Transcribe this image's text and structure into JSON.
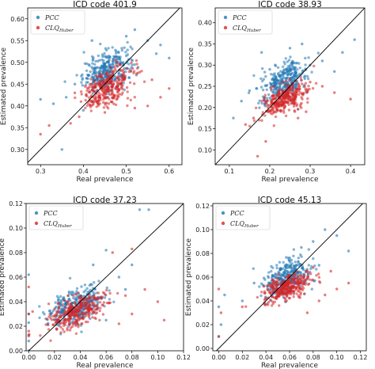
{
  "colors": {
    "pcc": "#1f77b4",
    "clq": "#d62728",
    "diag": "#000000",
    "axis": "#000000"
  },
  "chart_data": [
    {
      "type": "scatter",
      "title": "ICD code 401.9",
      "xlabel": "Real prevalence",
      "ylabel": "Estimated prevalence",
      "xlim": [
        0.27,
        0.63
      ],
      "ylim": [
        0.265,
        0.625
      ],
      "xticks": [
        "0.3",
        "0.4",
        "0.5",
        "0.6"
      ],
      "xtick_values": [
        0.3,
        0.4,
        0.5,
        0.6
      ],
      "yticks": [
        "0.30",
        "0.35",
        "0.40",
        "0.45",
        "0.50",
        "0.55",
        "0.60"
      ],
      "ytick_values": [
        0.3,
        0.35,
        0.4,
        0.45,
        0.5,
        0.55,
        0.6
      ],
      "grid": false,
      "legend_position": "top-left",
      "series": [
        {
          "name": "PCC",
          "sub": "",
          "color": "#1f77b4",
          "cluster": {
            "cx": 0.455,
            "cy": 0.482,
            "sx": 0.028,
            "sy": 0.022,
            "n": 320
          },
          "outliers": [
            [
              0.3,
              0.415
            ],
            [
              0.33,
              0.405
            ],
            [
              0.36,
              0.42
            ],
            [
              0.4,
              0.39
            ],
            [
              0.5,
              0.56
            ],
            [
              0.52,
              0.575
            ],
            [
              0.55,
              0.55
            ],
            [
              0.58,
              0.54
            ],
            [
              0.6,
              0.51
            ],
            [
              0.38,
              0.45
            ],
            [
              0.35,
              0.3
            ],
            [
              0.42,
              0.55
            ],
            [
              0.57,
              0.52
            ]
          ]
        },
        {
          "name": "CLQ",
          "sub": "Huber",
          "color": "#d62728",
          "cluster": {
            "cx": 0.455,
            "cy": 0.44,
            "sx": 0.03,
            "sy": 0.02,
            "n": 320
          },
          "outliers": [
            [
              0.3,
              0.335
            ],
            [
              0.32,
              0.355
            ],
            [
              0.37,
              0.36
            ],
            [
              0.39,
              0.375
            ],
            [
              0.55,
              0.4
            ],
            [
              0.58,
              0.42
            ],
            [
              0.6,
              0.44
            ],
            [
              0.45,
              0.385
            ],
            [
              0.48,
              0.5
            ],
            [
              0.38,
              0.43
            ],
            [
              0.56,
              0.46
            ],
            [
              0.52,
              0.395
            ]
          ]
        }
      ]
    },
    {
      "type": "scatter",
      "title": "ICD code 38.93",
      "xlabel": "Real prevalence",
      "ylabel": "Estimated prevalence",
      "xlim": [
        0.065,
        0.435
      ],
      "ylim": [
        0.065,
        0.435
      ],
      "xticks": [
        "0.1",
        "0.2",
        "0.3",
        "0.4"
      ],
      "xtick_values": [
        0.1,
        0.2,
        0.3,
        0.4
      ],
      "yticks": [
        "0.10",
        "0.15",
        "0.20",
        "0.25",
        "0.30",
        "0.35",
        "0.40"
      ],
      "ytick_values": [
        0.1,
        0.15,
        0.2,
        0.25,
        0.3,
        0.35,
        0.4
      ],
      "grid": false,
      "legend_position": "top-left",
      "series": [
        {
          "name": "PCC",
          "sub": "",
          "color": "#1f77b4",
          "cluster": {
            "cx": 0.235,
            "cy": 0.262,
            "sx": 0.028,
            "sy": 0.022,
            "n": 320
          },
          "outliers": [
            [
              0.11,
              0.175
            ],
            [
              0.13,
              0.215
            ],
            [
              0.15,
              0.24
            ],
            [
              0.3,
              0.3
            ],
            [
              0.33,
              0.31
            ],
            [
              0.36,
              0.285
            ],
            [
              0.18,
              0.33
            ],
            [
              0.25,
              0.34
            ],
            [
              0.28,
              0.35
            ],
            [
              0.38,
              0.33
            ],
            [
              0.41,
              0.36
            ],
            [
              0.2,
              0.29
            ]
          ]
        },
        {
          "name": "CLQ",
          "sub": "Huber",
          "color": "#d62728",
          "cluster": {
            "cx": 0.235,
            "cy": 0.22,
            "sx": 0.028,
            "sy": 0.016,
            "n": 320
          },
          "outliers": [
            [
              0.17,
              0.085
            ],
            [
              0.19,
              0.12
            ],
            [
              0.14,
              0.16
            ],
            [
              0.16,
              0.175
            ],
            [
              0.3,
              0.26
            ],
            [
              0.33,
              0.25
            ],
            [
              0.36,
              0.235
            ],
            [
              0.4,
              0.22
            ],
            [
              0.27,
              0.175
            ],
            [
              0.29,
              0.19
            ]
          ]
        }
      ]
    },
    {
      "type": "scatter",
      "title": "ICD code 37.23",
      "xlabel": "Real prevalence",
      "ylabel": "Estimated prevalence",
      "xlim": [
        -0.002,
        0.12
      ],
      "ylim": [
        0,
        0.12
      ],
      "xticks": [
        "0.00",
        "0.02",
        "0.04",
        "0.06",
        "0.08",
        "0.10",
        "0.12"
      ],
      "xtick_values": [
        0.0,
        0.02,
        0.04,
        0.06,
        0.08,
        0.1,
        0.12
      ],
      "yticks": [
        "0.00",
        "0.02",
        "0.04",
        "0.06",
        "0.08",
        "0.10",
        "0.12"
      ],
      "ytick_values": [
        0.0,
        0.02,
        0.04,
        0.06,
        0.08,
        0.1,
        0.12
      ],
      "grid": false,
      "legend_position": "top-left",
      "series": [
        {
          "name": "PCC",
          "sub": "",
          "color": "#1f77b4",
          "cluster": {
            "cx": 0.038,
            "cy": 0.037,
            "sx": 0.011,
            "sy": 0.007,
            "n": 320
          },
          "outliers": [
            [
              0.0,
              0.013
            ],
            [
              0.0,
              0.023
            ],
            [
              0.0,
              0.03
            ],
            [
              0.0,
              0.062
            ],
            [
              0.0,
              0.0
            ],
            [
              0.0,
              0.008
            ],
            [
              0.07,
              0.06
            ],
            [
              0.08,
              0.07
            ],
            [
              0.086,
              0.115
            ],
            [
              0.093,
              0.115
            ],
            [
              0.075,
              0.05
            ],
            [
              0.06,
              0.025
            ],
            [
              0.06,
              0.082
            ],
            [
              0.05,
              0.07
            ]
          ]
        },
        {
          "name": "CLQ",
          "sub": "Huber",
          "color": "#d62728",
          "cluster": {
            "cx": 0.038,
            "cy": 0.032,
            "sx": 0.011,
            "sy": 0.006,
            "n": 320
          },
          "outliers": [
            [
              0.0,
              0.012
            ],
            [
              0.0,
              0.016
            ],
            [
              0.0,
              0.03
            ],
            [
              0.0,
              0.052
            ],
            [
              0.003,
              0.032
            ],
            [
              0.07,
              0.022
            ],
            [
              0.075,
              0.045
            ],
            [
              0.08,
              0.03
            ],
            [
              0.1,
              0.04
            ],
            [
              0.105,
              0.025
            ],
            [
              0.065,
              0.08
            ],
            [
              0.08,
              0.083
            ],
            [
              0.09,
              0.05
            ]
          ]
        }
      ]
    },
    {
      "type": "scatter",
      "title": "ICD code 45.13",
      "xlabel": "Real prevalence",
      "ylabel": "Estimated prevalence",
      "xlim": [
        -0.005,
        0.125
      ],
      "ylim": [
        -0.002,
        0.122
      ],
      "xticks": [
        "0.00",
        "0.02",
        "0.04",
        "0.06",
        "0.08",
        "0.10",
        "0.12"
      ],
      "xtick_values": [
        0.0,
        0.02,
        0.04,
        0.06,
        0.08,
        0.1,
        0.12
      ],
      "yticks": [
        "0.00",
        "0.02",
        "0.04",
        "0.06",
        "0.08",
        "0.10",
        "0.12"
      ],
      "ytick_values": [
        0.0,
        0.02,
        0.04,
        0.06,
        0.08,
        0.1,
        0.12
      ],
      "grid": false,
      "legend_position": "top-left",
      "series": [
        {
          "name": "PCC",
          "sub": "",
          "color": "#1f77b4",
          "cluster": {
            "cx": 0.058,
            "cy": 0.06,
            "sx": 0.01,
            "sy": 0.008,
            "n": 320
          },
          "outliers": [
            [
              0.0,
              0.01
            ],
            [
              0.0,
              0.035
            ],
            [
              0.002,
              0.02
            ],
            [
              0.005,
              0.045
            ],
            [
              0.02,
              0.04
            ],
            [
              0.08,
              0.09
            ],
            [
              0.09,
              0.1
            ],
            [
              0.1,
              0.095
            ],
            [
              0.085,
              0.07
            ],
            [
              0.11,
              0.082
            ],
            [
              0.03,
              0.055
            ],
            [
              0.07,
              0.085
            ]
          ]
        },
        {
          "name": "CLQ",
          "sub": "Huber",
          "color": "#d62728",
          "cluster": {
            "cx": 0.057,
            "cy": 0.051,
            "sx": 0.01,
            "sy": 0.005,
            "n": 320
          },
          "outliers": [
            [
              0.0,
              0.01
            ],
            [
              0.0,
              0.05
            ],
            [
              0.002,
              0.03
            ],
            [
              0.02,
              0.035
            ],
            [
              0.085,
              0.04
            ],
            [
              0.09,
              0.045
            ],
            [
              0.1,
              0.05
            ],
            [
              0.08,
              0.068
            ],
            [
              0.095,
              0.065
            ],
            [
              0.075,
              0.03
            ],
            [
              0.11,
              0.055
            ]
          ]
        }
      ]
    }
  ]
}
